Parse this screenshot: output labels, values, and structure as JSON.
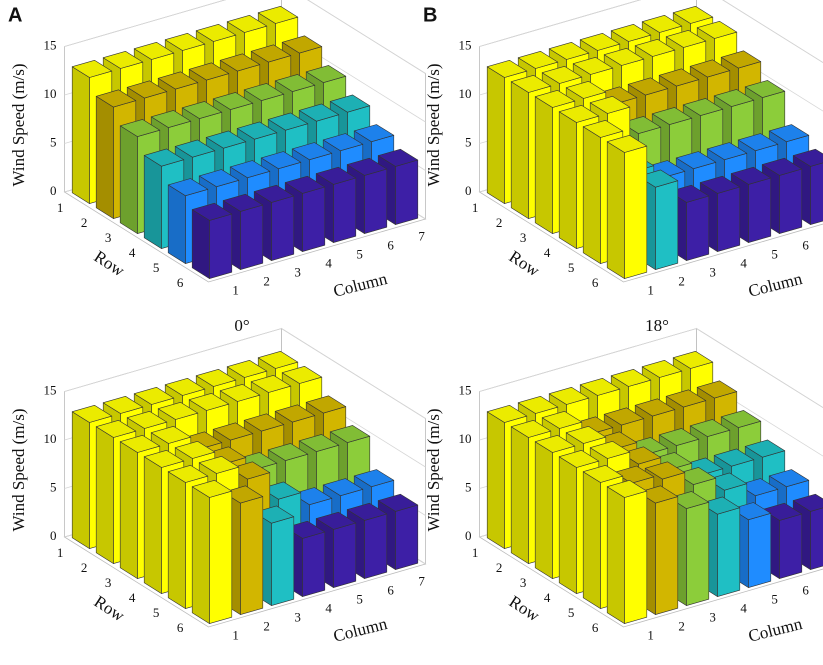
{
  "chart_data": [
    {
      "type": "bar3d",
      "panel": "A",
      "caption": "0°",
      "zlabel": "Wind Speed (m/s)",
      "xlabel": "Column",
      "ylabel": "Row",
      "rows": [
        1,
        2,
        3,
        4,
        5,
        6
      ],
      "columns": [
        1,
        2,
        3,
        4,
        5,
        6,
        7
      ],
      "values": [
        [
          13,
          13,
          13,
          13,
          13,
          13,
          13
        ],
        [
          11.5,
          11.5,
          11.5,
          11.5,
          11.5,
          11.5,
          11.5
        ],
        [
          10,
          10,
          10,
          10,
          10,
          10,
          10
        ],
        [
          8.5,
          8.5,
          8.5,
          8.5,
          8.5,
          8.5,
          8.5
        ],
        [
          7,
          7,
          7,
          7,
          7,
          7,
          7
        ],
        [
          6,
          6,
          6,
          6,
          6,
          6,
          6
        ]
      ],
      "zlim": [
        0,
        15
      ],
      "zticks": [
        0,
        5,
        10,
        15
      ],
      "grid": true,
      "colormap": [
        "#3d1fa6",
        "#1f8cff",
        "#1fbfc4",
        "#8ccd3a",
        "#d2b600",
        "#ffff00"
      ],
      "clim": [
        5,
        14
      ]
    },
    {
      "type": "bar3d",
      "panel": "B",
      "caption": "18°",
      "zlabel": "Wind Speed (m/s)",
      "xlabel": "Column",
      "ylabel": "Row",
      "rows": [
        1,
        2,
        3,
        4,
        5,
        6
      ],
      "columns": [
        1,
        2,
        3,
        4,
        5,
        6,
        7
      ],
      "values": [
        [
          13,
          13,
          13,
          13,
          13,
          13,
          13
        ],
        [
          13,
          13,
          13,
          13,
          13,
          13,
          13
        ],
        [
          13,
          13,
          11.5,
          11.5,
          11.5,
          11.5,
          11.5
        ],
        [
          13,
          13,
          10,
          10,
          10,
          10,
          10
        ],
        [
          13,
          8.5,
          7,
          7,
          7,
          7,
          7
        ],
        [
          13,
          8.5,
          6,
          6,
          6,
          6,
          6
        ]
      ],
      "zlim": [
        0,
        15
      ],
      "zticks": [
        0,
        5,
        10,
        15
      ],
      "grid": true,
      "colormap": [
        "#3d1fa6",
        "#1f8cff",
        "#1fbfc4",
        "#8ccd3a",
        "#d2b600",
        "#ffff00"
      ],
      "clim": [
        5,
        14
      ]
    },
    {
      "type": "bar3d",
      "zlabel": "Wind Speed (m/s)",
      "xlabel": "Column",
      "ylabel": "Row",
      "rows": [
        1,
        2,
        3,
        4,
        5,
        6
      ],
      "columns": [
        1,
        2,
        3,
        4,
        5,
        6,
        7
      ],
      "values": [
        [
          13,
          13,
          13,
          13,
          13,
          13,
          13
        ],
        [
          13,
          13,
          13,
          13,
          13,
          13,
          13
        ],
        [
          13,
          13,
          11.5,
          11.5,
          11.5,
          11.5,
          11.5
        ],
        [
          13,
          13,
          11.5,
          10,
          10,
          10,
          10
        ],
        [
          13,
          13,
          11.5,
          8.5,
          7,
          7,
          7
        ],
        [
          13,
          11.5,
          8.5,
          6,
          6,
          6,
          6
        ]
      ],
      "zlim": [
        0,
        15
      ],
      "zticks": [
        0,
        5,
        10,
        15
      ],
      "grid": true,
      "colormap": [
        "#3d1fa6",
        "#1f8cff",
        "#1fbfc4",
        "#8ccd3a",
        "#d2b600",
        "#ffff00"
      ],
      "clim": [
        5,
        14
      ]
    },
    {
      "type": "bar3d",
      "zlabel": "Wind Speed (m/s)",
      "xlabel": "Column",
      "ylabel": "Row",
      "rows": [
        1,
        2,
        3,
        4,
        5,
        6
      ],
      "columns": [
        1,
        2,
        3,
        4,
        5,
        6,
        7
      ],
      "values": [
        [
          13,
          13,
          13,
          13,
          13,
          13,
          13
        ],
        [
          13,
          13,
          11.5,
          11.5,
          11.5,
          11.5,
          11.5
        ],
        [
          13,
          13,
          11.5,
          10,
          10,
          10,
          10
        ],
        [
          13,
          13,
          11.5,
          10,
          8.5,
          8.5,
          8.5
        ],
        [
          13,
          12,
          11.5,
          10,
          8.5,
          7,
          7
        ],
        [
          13,
          11.5,
          10,
          8.5,
          7,
          6,
          6
        ]
      ],
      "zlim": [
        0,
        15
      ],
      "zticks": [
        0,
        5,
        10,
        15
      ],
      "grid": true,
      "colormap": [
        "#3d1fa6",
        "#1f8cff",
        "#1fbfc4",
        "#8ccd3a",
        "#d2b600",
        "#ffff00"
      ],
      "clim": [
        5,
        14
      ]
    }
  ]
}
